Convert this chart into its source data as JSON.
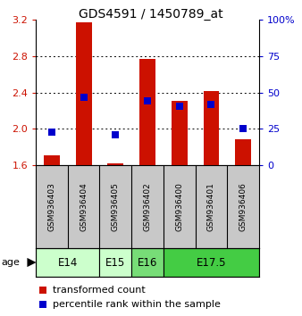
{
  "title": "GDS4591 / 1450789_at",
  "samples": [
    "GSM936403",
    "GSM936404",
    "GSM936405",
    "GSM936402",
    "GSM936400",
    "GSM936401",
    "GSM936406"
  ],
  "bar_bottom": 1.6,
  "bar_tops": [
    1.71,
    3.17,
    1.62,
    2.77,
    2.31,
    2.41,
    1.88
  ],
  "blue_values": [
    1.96,
    2.35,
    1.93,
    2.31,
    2.25,
    2.27,
    2.0
  ],
  "ylim_left": [
    1.6,
    3.2
  ],
  "ylim_right": [
    0,
    100
  ],
  "yticks_left": [
    1.6,
    2.0,
    2.4,
    2.8,
    3.2
  ],
  "yticks_right": [
    0,
    25,
    50,
    75,
    100
  ],
  "ytick_labels_right": [
    "0",
    "25",
    "50",
    "75",
    "100%"
  ],
  "bar_color": "#cc1100",
  "blue_color": "#0000cc",
  "bar_width": 0.5,
  "blue_size": 40,
  "grid_color": "#000000",
  "bg_color": "#ffffff",
  "plot_bg": "#ffffff",
  "age_groups": [
    {
      "label": "E14",
      "spans": [
        0,
        2
      ],
      "color": "#ccffcc"
    },
    {
      "label": "E15",
      "spans": [
        2,
        3
      ],
      "color": "#ccffcc"
    },
    {
      "label": "E16",
      "spans": [
        3,
        4
      ],
      "color": "#77dd77"
    },
    {
      "label": "E17.5",
      "spans": [
        4,
        7
      ],
      "color": "#44cc44"
    }
  ],
  "legend_red_label": "transformed count",
  "legend_blue_label": "percentile rank within the sample",
  "title_fontsize": 10,
  "tick_fontsize": 8,
  "sample_fontsize": 6.5,
  "age_fontsize": 8.5,
  "legend_fontsize": 8
}
